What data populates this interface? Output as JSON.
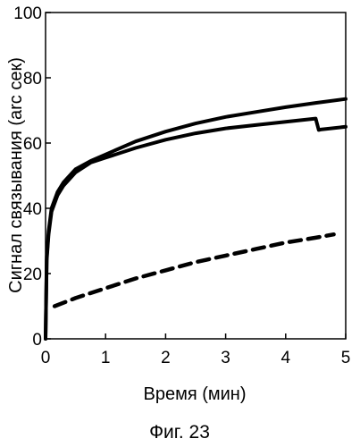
{
  "chart_data": {
    "type": "line",
    "xlabel": "Время (мин)",
    "ylabel": "Сигнал связывания (arc сек)",
    "caption": "Фиг. 23",
    "xlim": [
      0,
      5
    ],
    "ylim": [
      0,
      100
    ],
    "x_ticks": [
      "0",
      "1",
      "2",
      "3",
      "4",
      "5"
    ],
    "y_ticks": [
      "0",
      "20",
      "40",
      "60",
      "80",
      "100"
    ],
    "grid": false,
    "legend": "none",
    "series": [
      {
        "style": "solid",
        "color": "#000000",
        "x": [
          0,
          0.02,
          0.05,
          0.1,
          0.2,
          0.3,
          0.5,
          0.75,
          1.0,
          1.5,
          2.0,
          2.5,
          3.0,
          3.5,
          4.0,
          4.5,
          5.0
        ],
        "y": [
          0,
          25,
          33,
          40,
          45,
          48,
          52,
          54.5,
          56.5,
          60.5,
          63.5,
          66,
          68,
          69.5,
          71,
          72.3,
          73.5
        ]
      },
      {
        "style": "solid",
        "color": "#000000",
        "x": [
          0,
          0.02,
          0.05,
          0.1,
          0.2,
          0.3,
          0.5,
          0.75,
          1.0,
          1.5,
          2.0,
          2.5,
          3.0,
          3.5,
          4.0,
          4.5,
          4.55,
          4.6,
          5.0
        ],
        "y": [
          0,
          24,
          32,
          39,
          44,
          47,
          51,
          54,
          55.5,
          58.5,
          61,
          63,
          64.5,
          65.5,
          66.5,
          67.5,
          64,
          64.2,
          65
        ]
      },
      {
        "style": "dashed",
        "color": "#000000",
        "x": [
          0.15,
          0.5,
          1.0,
          1.5,
          2.0,
          2.5,
          3.0,
          3.5,
          4.0,
          4.5,
          4.8
        ],
        "y": [
          10,
          12.5,
          15.5,
          18.5,
          21,
          23.5,
          25.5,
          27.5,
          29.5,
          31,
          32
        ]
      }
    ]
  }
}
